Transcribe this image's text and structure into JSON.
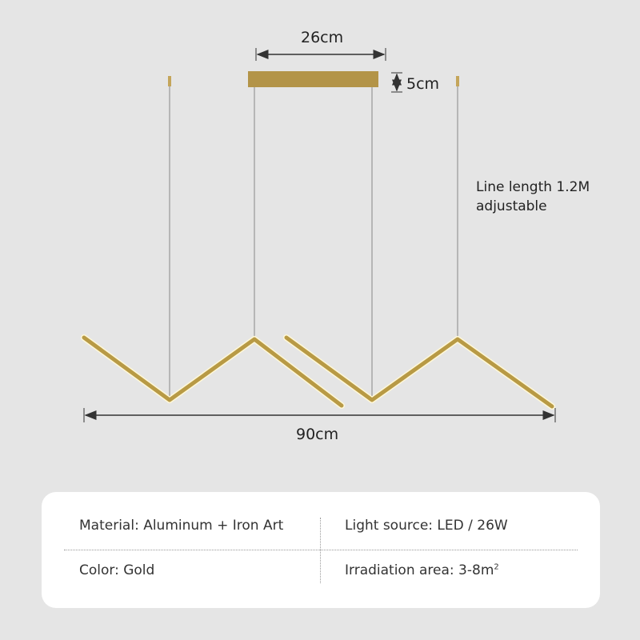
{
  "dimensions": {
    "canopy_width": "26cm",
    "canopy_height": "5cm",
    "total_width": "90cm"
  },
  "note": {
    "line1": "Line length 1.2M",
    "line2": "adjustable"
  },
  "specs": {
    "material": "Material: Aluminum + Iron Art",
    "light_source": "Light source: LED / 26W",
    "color": "Color: Gold",
    "irradiation": "Irradiation area: 3-8m",
    "irradiation_sup": "2"
  },
  "colors": {
    "background": "#e5e5e5",
    "gold": "#b89a45",
    "card": "#ffffff"
  }
}
